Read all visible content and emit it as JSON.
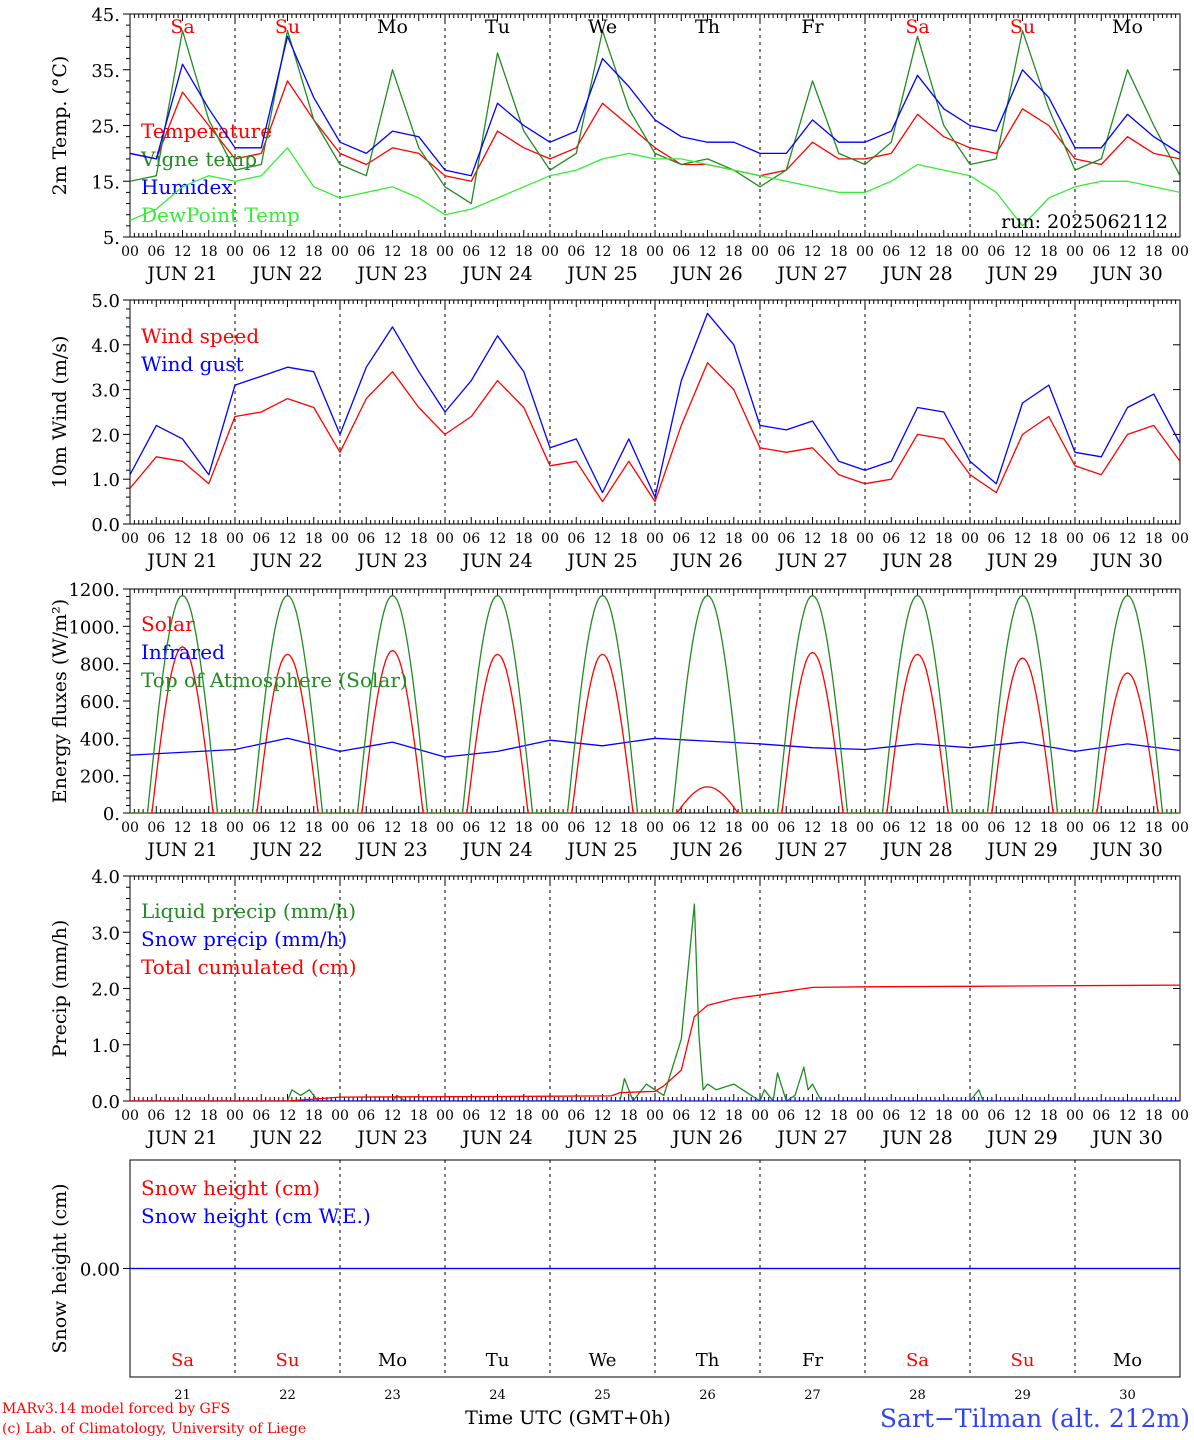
{
  "meta": {
    "run_label": "run: 2025062112",
    "footer_model": "MARv3.14 model forced by GFS",
    "footer_lab": "(c) Lab. of Climatology, University of Liege",
    "x_axis_title": "Time UTC (GMT+0h)",
    "station": "Sart−Tilman (alt. 212m)"
  },
  "days": {
    "dates": [
      "JUN 21",
      "JUN 22",
      "JUN 23",
      "JUN 24",
      "JUN 25",
      "JUN 26",
      "JUN 27",
      "JUN 28",
      "JUN 29",
      "JUN 30"
    ],
    "day_numbers": [
      "21",
      "22",
      "23",
      "24",
      "25",
      "26",
      "27",
      "28",
      "29",
      "30"
    ],
    "weekdays": [
      "Sa",
      "Su",
      "Mo",
      "Tu",
      "We",
      "Th",
      "Fr",
      "Sa",
      "Su",
      "Mo"
    ],
    "weekend": [
      true,
      true,
      false,
      false,
      false,
      false,
      false,
      true,
      true,
      false
    ],
    "hour_labels": [
      "00",
      "06",
      "12",
      "18"
    ],
    "end_label": "00"
  },
  "colors": {
    "red": "#ff0000",
    "dark_green": "#228b22",
    "light_green": "#33ee33",
    "blue": "#0000ff",
    "station": "#3344ee"
  },
  "chart_data": [
    {
      "type": "line",
      "panel": "temperature",
      "ylabel": "2m Temp. (°C)",
      "ylim": [
        5,
        45
      ],
      "yticks": [
        5,
        15,
        25,
        35,
        45
      ],
      "ytick_labels": [
        "5.",
        "15.",
        "25.",
        "35.",
        "45."
      ],
      "x": [
        0,
        6,
        12,
        18,
        24,
        30,
        36,
        42,
        48,
        54,
        60,
        66,
        72,
        78,
        84,
        90,
        96,
        102,
        108,
        114,
        120,
        126,
        132,
        138,
        144,
        150,
        156,
        162,
        168,
        174,
        180,
        186,
        192,
        198,
        204,
        210,
        216,
        222,
        228,
        234,
        240
      ],
      "series": [
        {
          "name": "Temperature",
          "color": "#ff0000",
          "values": [
            20,
            19,
            31,
            25,
            19,
            20,
            33,
            26,
            20,
            18,
            21,
            20,
            16,
            15,
            24,
            21,
            19,
            21,
            29,
            25,
            21,
            18,
            18,
            17,
            16,
            17,
            22,
            19,
            19,
            20,
            27,
            23,
            21,
            20,
            28,
            25,
            19,
            18,
            23,
            20,
            19
          ]
        },
        {
          "name": "Vigne temp",
          "color": "#228b22",
          "values": [
            15,
            16,
            42,
            26,
            17,
            18,
            42,
            26,
            18,
            16,
            35,
            21,
            14,
            11,
            38,
            24,
            17,
            20,
            42,
            28,
            20,
            18,
            19,
            17,
            14,
            17,
            33,
            20,
            18,
            22,
            41,
            25,
            18,
            19,
            42,
            28,
            17,
            19,
            35,
            25,
            16
          ]
        },
        {
          "name": "Humidex",
          "color": "#0000ff",
          "values": [
            20,
            19,
            36,
            28,
            21,
            21,
            41,
            30,
            22,
            20,
            24,
            23,
            17,
            16,
            29,
            25,
            22,
            24,
            37,
            32,
            26,
            23,
            22,
            22,
            20,
            20,
            26,
            22,
            22,
            24,
            34,
            28,
            25,
            24,
            35,
            30,
            21,
            21,
            27,
            23,
            20
          ]
        },
        {
          "name": "DewPoint Temp",
          "color": "#33ee33",
          "values": [
            8,
            10,
            14,
            16,
            15,
            16,
            21,
            14,
            12,
            13,
            14,
            12,
            9,
            10,
            12,
            14,
            16,
            17,
            19,
            20,
            19,
            19,
            18,
            17,
            16,
            15,
            14,
            13,
            13,
            15,
            18,
            17,
            16,
            13,
            7,
            12,
            14,
            15,
            15,
            14,
            13
          ]
        }
      ]
    },
    {
      "type": "line",
      "panel": "wind",
      "ylabel": "10m Wind (m/s)",
      "ylim": [
        0,
        5
      ],
      "yticks": [
        0,
        1,
        2,
        3,
        4,
        5
      ],
      "ytick_labels": [
        "0.0",
        "1.0",
        "2.0",
        "3.0",
        "4.0",
        "5.0"
      ],
      "x": [
        0,
        6,
        12,
        18,
        24,
        30,
        36,
        42,
        48,
        54,
        60,
        66,
        72,
        78,
        84,
        90,
        96,
        102,
        108,
        114,
        120,
        126,
        132,
        138,
        144,
        150,
        156,
        162,
        168,
        174,
        180,
        186,
        192,
        198,
        204,
        210,
        216,
        222,
        228,
        234,
        240
      ],
      "series": [
        {
          "name": "Wind speed",
          "color": "#ff0000",
          "values": [
            0.8,
            1.5,
            1.4,
            0.9,
            2.4,
            2.5,
            2.8,
            2.6,
            1.6,
            2.8,
            3.4,
            2.6,
            2.0,
            2.4,
            3.2,
            2.6,
            1.3,
            1.4,
            0.5,
            1.4,
            0.5,
            2.2,
            3.6,
            3.0,
            1.7,
            1.6,
            1.7,
            1.1,
            0.9,
            1.0,
            2.0,
            1.9,
            1.1,
            0.7,
            2.0,
            2.4,
            1.3,
            1.1,
            2.0,
            2.2,
            1.4
          ]
        },
        {
          "name": "Wind gust",
          "color": "#0000ff",
          "values": [
            1.1,
            2.2,
            1.9,
            1.1,
            3.1,
            3.3,
            3.5,
            3.4,
            2.0,
            3.5,
            4.4,
            3.4,
            2.5,
            3.2,
            4.2,
            3.4,
            1.7,
            1.9,
            0.7,
            1.9,
            0.6,
            3.2,
            4.7,
            4.0,
            2.2,
            2.1,
            2.3,
            1.4,
            1.2,
            1.4,
            2.6,
            2.5,
            1.4,
            0.9,
            2.7,
            3.1,
            1.6,
            1.5,
            2.6,
            2.9,
            1.8
          ]
        }
      ]
    },
    {
      "type": "line",
      "panel": "energy",
      "ylabel": "Energy fluxes (W/m²)",
      "ylim": [
        0,
        1200
      ],
      "yticks": [
        0,
        200,
        400,
        600,
        800,
        1000,
        1200
      ],
      "ytick_labels": [
        "0.",
        "200.",
        "400.",
        "600.",
        "800.",
        "1000.",
        "1200."
      ],
      "toa_peak": 1165,
      "solar_peaks": [
        890,
        850,
        870,
        850,
        850,
        140,
        860,
        850,
        830,
        750
      ],
      "series": [
        {
          "name": "Solar",
          "color": "#ff0000"
        },
        {
          "name": "Infrared",
          "color": "#0000ff",
          "x": [
            0,
            24,
            36,
            48,
            60,
            72,
            84,
            96,
            108,
            120,
            132,
            144,
            156,
            168,
            180,
            192,
            204,
            216,
            228,
            240
          ],
          "values": [
            310,
            340,
            400,
            330,
            380,
            300,
            330,
            390,
            360,
            400,
            385,
            370,
            350,
            340,
            370,
            350,
            380,
            330,
            370,
            335
          ]
        },
        {
          "name": "Top of Atmosphere (Solar)",
          "color": "#228b22"
        }
      ]
    },
    {
      "type": "line",
      "panel": "precip",
      "ylabel": "Precip (mm/h)",
      "ylim": [
        0,
        4
      ],
      "yticks": [
        0,
        1,
        2,
        3,
        4
      ],
      "ytick_labels": [
        "0.0",
        "1.0",
        "2.0",
        "3.0",
        "4.0"
      ],
      "series": [
        {
          "name": "Liquid precip (mm/h)",
          "color": "#228b22",
          "x": [
            0,
            36,
            37,
            39,
            41,
            43,
            60,
            61,
            63,
            112,
            113,
            115,
            118,
            120,
            122,
            126,
            129,
            130,
            131,
            132,
            134,
            138,
            144,
            145,
            147,
            148,
            150,
            152,
            154,
            155,
            156,
            158,
            192,
            193,
            194,
            195,
            240
          ],
          "values": [
            0,
            0,
            0.2,
            0.1,
            0.2,
            0,
            0,
            0.1,
            0,
            0,
            0.4,
            0,
            0.3,
            0.2,
            0.1,
            1.1,
            3.5,
            1.2,
            0.2,
            0.3,
            0.2,
            0.3,
            0,
            0.2,
            0,
            0.5,
            0,
            0.1,
            0.6,
            0.2,
            0.3,
            0,
            0,
            0.1,
            0.2,
            0,
            0
          ]
        },
        {
          "name": "Snow precip (mm/h)",
          "color": "#0000ff",
          "x": [
            0,
            240
          ],
          "values": [
            0,
            0
          ]
        },
        {
          "name": "Total cumulated (cm)",
          "color": "#ff0000",
          "x": [
            0,
            36,
            48,
            84,
            110,
            112,
            120,
            122,
            126,
            129,
            132,
            138,
            150,
            156,
            168,
            192,
            240
          ],
          "values": [
            0,
            0,
            0.07,
            0.08,
            0.09,
            0.15,
            0.17,
            0.27,
            0.55,
            1.5,
            1.7,
            1.82,
            1.95,
            2.02,
            2.03,
            2.04,
            2.06
          ]
        }
      ]
    },
    {
      "type": "line",
      "panel": "snow",
      "ylabel": "Snow height (cm)",
      "ylim": [
        -1,
        1
      ],
      "yticks": [
        0
      ],
      "ytick_labels": [
        "0.00"
      ],
      "series": [
        {
          "name": "Snow height (cm)",
          "color": "#ff0000",
          "x": [
            0,
            240
          ],
          "values": [
            0,
            0
          ]
        },
        {
          "name": "Snow height (cm W.E.)",
          "color": "#0000ff",
          "x": [
            0,
            240
          ],
          "values": [
            0,
            0
          ]
        }
      ]
    }
  ]
}
